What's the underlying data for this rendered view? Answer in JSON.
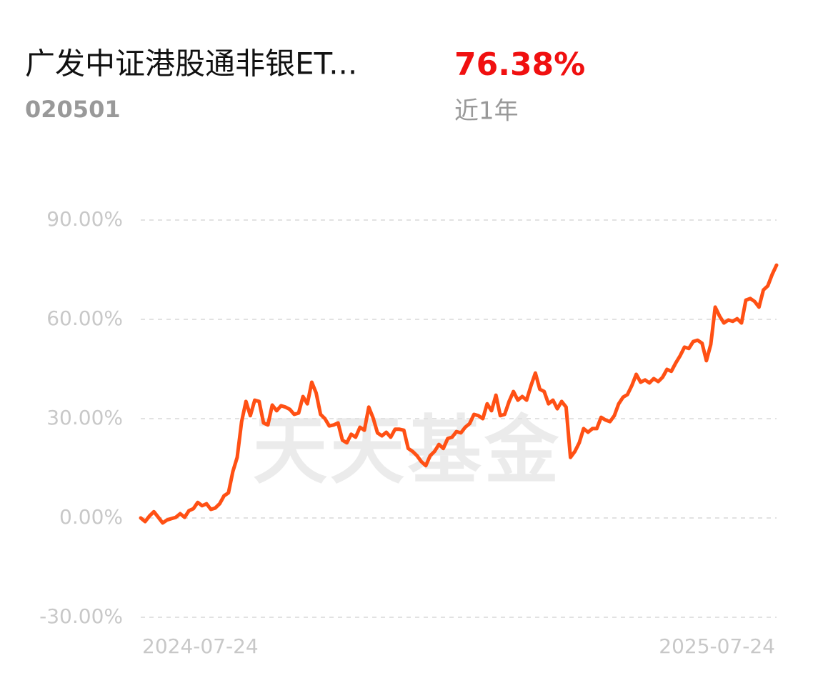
{
  "header": {
    "name": "广发中证港股通非银ET...",
    "code": "020501",
    "return": "76.38%",
    "period": "近1年"
  },
  "chart_data": {
    "type": "line",
    "watermark": "天天基金",
    "categories": [
      "2024-07-24",
      null,
      null,
      null,
      null,
      null,
      null,
      null,
      null,
      null,
      null,
      null,
      null,
      null,
      null,
      null,
      null,
      null,
      null,
      null,
      null,
      null,
      null,
      null,
      null,
      null,
      null,
      null,
      null,
      null,
      null,
      null,
      null,
      null,
      null,
      null,
      null,
      null,
      null,
      null,
      null,
      null,
      null,
      null,
      null,
      null,
      null,
      null,
      null,
      null,
      null,
      null,
      null,
      null,
      null,
      null,
      null,
      null,
      null,
      null,
      null,
      null,
      null,
      null,
      null,
      null,
      null,
      null,
      null,
      null,
      null,
      null,
      null,
      null,
      null,
      null,
      null,
      null,
      null,
      null,
      null,
      null,
      null,
      null,
      null,
      null,
      null,
      null,
      null,
      null,
      null,
      null,
      null,
      null,
      null,
      null,
      null,
      null,
      null,
      null,
      null,
      null,
      null,
      null,
      null,
      null,
      null,
      null,
      null,
      null,
      null,
      null,
      null,
      null,
      null,
      null,
      null,
      null,
      null,
      null,
      null,
      null,
      null,
      null,
      null,
      null,
      null,
      null,
      null,
      null,
      null,
      null,
      null,
      null,
      null,
      null,
      null,
      null,
      null,
      null,
      null,
      null,
      null,
      null,
      null,
      "2025-07-24"
    ],
    "series": [
      {
        "color": "#ff5014",
        "values": [
          0,
          -1.1,
          0.6,
          1.9,
          0.2,
          -1.5,
          -0.6,
          -0.2,
          0.2,
          1.3,
          0.2,
          2.2,
          2.8,
          4.7,
          3.7,
          4.3,
          2.6,
          3.0,
          4.3,
          6.7,
          7.6,
          14.0,
          18.3,
          29.1,
          35.2,
          30.9,
          35.6,
          35.2,
          28.7,
          28.1,
          34.1,
          32.4,
          33.9,
          33.5,
          32.8,
          31.3,
          31.7,
          36.7,
          34.5,
          41.0,
          37.8,
          31.3,
          30.0,
          27.8,
          28.1,
          28.7,
          23.5,
          22.7,
          25.3,
          24.4,
          27.4,
          26.5,
          33.5,
          30.2,
          25.7,
          24.8,
          25.9,
          24.4,
          26.8,
          26.8,
          26.5,
          21.0,
          20.1,
          18.8,
          17.0,
          15.8,
          18.8,
          20.1,
          22.2,
          21.0,
          24.0,
          24.4,
          26.1,
          25.7,
          27.4,
          28.5,
          31.3,
          30.9,
          30.0,
          34.5,
          32.4,
          37.1,
          30.9,
          31.3,
          35.2,
          38.2,
          35.6,
          36.7,
          35.6,
          40.0,
          43.8,
          38.9,
          38.2,
          34.5,
          35.6,
          33.0,
          35.2,
          33.5,
          18.3,
          20.1,
          22.7,
          27.0,
          25.9,
          27.0,
          27.0,
          30.4,
          29.6,
          29.1,
          30.9,
          34.5,
          36.5,
          37.3,
          40.0,
          43.4,
          41.0,
          41.7,
          40.8,
          42.1,
          41.2,
          42.5,
          44.9,
          44.3,
          46.8,
          49.0,
          51.6,
          51.2,
          53.3,
          53.7,
          52.8,
          47.5,
          52.4,
          63.7,
          61.0,
          58.9,
          59.8,
          59.4,
          60.2,
          58.9,
          65.8,
          66.3,
          65.4,
          63.7,
          68.9,
          70.1,
          73.6,
          76.38
        ]
      }
    ],
    "ylim": [
      -30,
      90
    ],
    "yticks": [
      {
        "value": -30,
        "label": "-30.00%"
      },
      {
        "value": 0,
        "label": "0.00%"
      },
      {
        "value": 30,
        "label": "30.00%"
      },
      {
        "value": 60,
        "label": "60.00%"
      },
      {
        "value": 90,
        "label": "90.00%"
      }
    ],
    "grid": true
  }
}
